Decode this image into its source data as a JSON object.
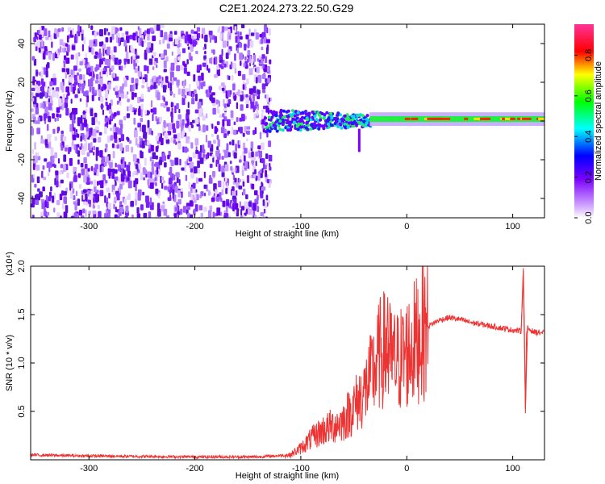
{
  "title": "C2E1.2024.273.22.50.G29",
  "chart_data": [
    {
      "type": "heatmap",
      "title": "C2E1.2024.273.22.50.G29",
      "xlabel": "Height of straight line (km)",
      "ylabel": "Frequency (Hz)",
      "xlim": [
        -355,
        130
      ],
      "ylim": [
        -50,
        50
      ],
      "x_ticks": [
        -300,
        -200,
        -100,
        0,
        100
      ],
      "y_ticks": [
        -40,
        -20,
        0,
        20,
        40
      ],
      "colorbar": {
        "label": "Normalized spectral amplitude",
        "range": [
          0,
          1
        ],
        "ticks": [
          "0.0",
          "0.2",
          "0.4",
          "0.6",
          "0.8"
        ],
        "colors": [
          "#ffffff",
          "#7b00ff",
          "#0000ff",
          "#00ffff",
          "#00ff00",
          "#ffff00",
          "#ff0000",
          "#ff00ff"
        ]
      },
      "regions": [
        {
          "x_range": [
            -355,
            -130
          ],
          "freq_range": [
            -50,
            50
          ],
          "amplitude": 0.05,
          "pattern": "random noise speckle"
        },
        {
          "x_range": [
            -135,
            -35
          ],
          "freq_range": [
            -6,
            8
          ],
          "amplitude": 0.45,
          "pattern": "clustered spots"
        },
        {
          "x_range": [
            -35,
            130
          ],
          "freq_center": 1,
          "freq_width": 3,
          "amplitude": 0.8,
          "pattern": "narrow tone line"
        }
      ],
      "grid": false
    },
    {
      "type": "line",
      "xlabel": "Height of straight line (km)",
      "ylabel": "SNR (10 * v/v)",
      "y_multiplier": "(x10⁴)",
      "xlim": [
        -355,
        130
      ],
      "ylim": [
        0,
        2.0
      ],
      "x_ticks": [
        -300,
        -200,
        -100,
        0,
        100
      ],
      "y_ticks": [
        "0.5",
        "1.0",
        "1.5",
        "2.0"
      ],
      "series_color": "#ee3333",
      "series": [
        {
          "x": [
            -355,
            -300,
            -200,
            -140,
            -110,
            -100,
            -90,
            -80,
            -70,
            -60,
            -50,
            -40,
            -30,
            -25,
            -20,
            -15,
            -10,
            0,
            10,
            20,
            30,
            40,
            50,
            60,
            80,
            100,
            108,
            110,
            112,
            114,
            120,
            130
          ],
          "y": [
            0.05,
            0.04,
            0.03,
            0.03,
            0.05,
            0.12,
            0.22,
            0.3,
            0.35,
            0.4,
            0.55,
            0.7,
            0.95,
            1.1,
            1.15,
            1.05,
            1.0,
            1.1,
            1.25,
            1.38,
            1.44,
            1.47,
            1.45,
            1.42,
            1.38,
            1.34,
            1.33,
            1.95,
            0.5,
            1.36,
            1.32,
            1.31
          ]
        }
      ],
      "grid": false
    }
  ]
}
